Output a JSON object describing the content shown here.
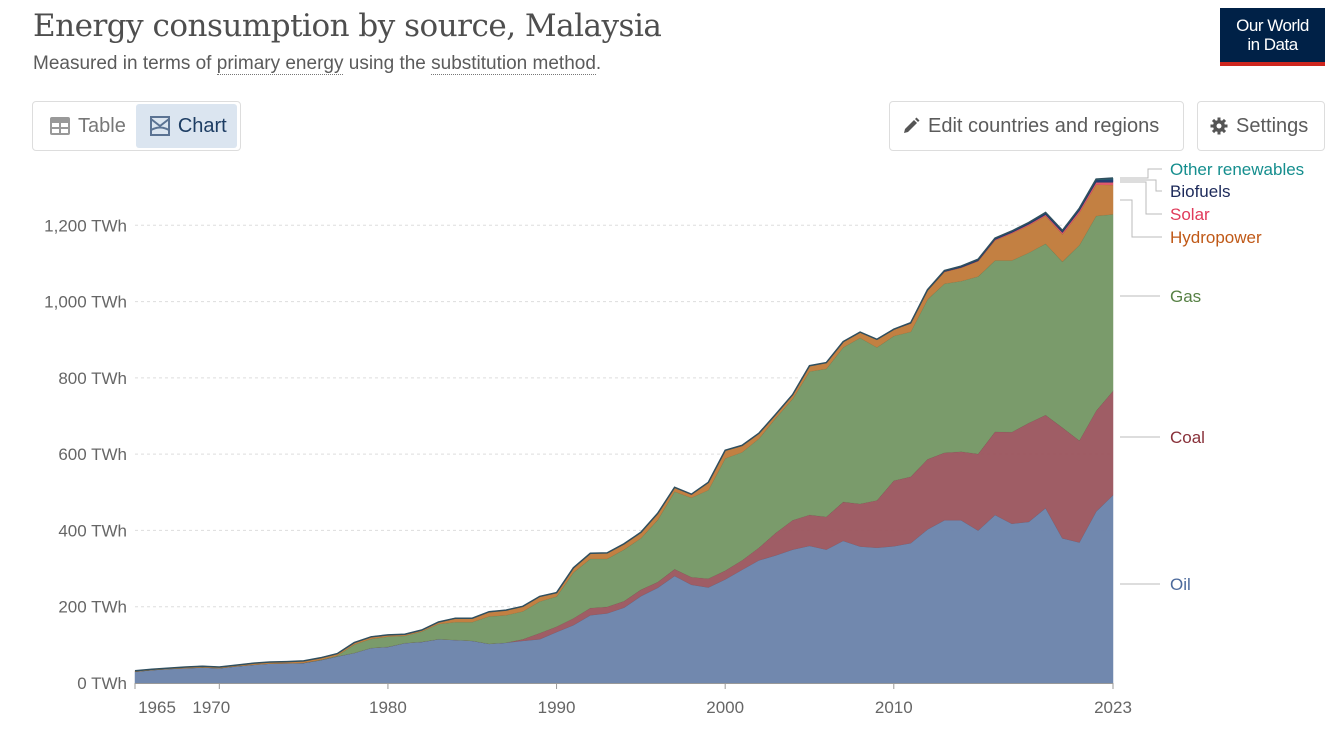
{
  "header": {
    "title": "Energy consumption by source, Malaysia",
    "subtitle_parts": [
      "Measured in terms of ",
      "primary energy",
      " using the ",
      "substitution method",
      "."
    ],
    "logo_line1": "Our World",
    "logo_line2": "in Data"
  },
  "tabs": [
    {
      "label": "Table",
      "icon": "table-icon",
      "active": false
    },
    {
      "label": "Chart",
      "icon": "chart-icon",
      "active": true
    }
  ],
  "toolbar": {
    "edit_label": "Edit countries and regions",
    "edit_icon": "pencil-icon",
    "settings_label": "Settings",
    "settings_icon": "gear-icon"
  },
  "chart_data": {
    "type": "area",
    "stacked": true,
    "ylim": [
      0,
      1400
    ],
    "y_ticks": [
      0,
      200,
      400,
      600,
      800,
      1000,
      1200
    ],
    "y_tick_labels": [
      "0 TWh",
      "200 TWh",
      "400 TWh",
      "600 TWh",
      "800 TWh",
      "1,000 TWh",
      "1,200 TWh"
    ],
    "x_ticks": [
      1965,
      1970,
      1980,
      1990,
      2000,
      2010,
      2023
    ],
    "x_tick_labels": [
      "1965",
      "1970",
      "1980",
      "1990",
      "2000",
      "2010",
      "2023"
    ],
    "grid": "horizontal dashed",
    "legend": "right, inline labels",
    "x": [
      1965,
      1966,
      1967,
      1968,
      1969,
      1970,
      1971,
      1972,
      1973,
      1974,
      1975,
      1976,
      1977,
      1978,
      1979,
      1980,
      1981,
      1982,
      1983,
      1984,
      1985,
      1986,
      1987,
      1988,
      1989,
      1990,
      1991,
      1992,
      1993,
      1994,
      1995,
      1996,
      1997,
      1998,
      1999,
      2000,
      2001,
      2002,
      2003,
      2004,
      2005,
      2006,
      2007,
      2008,
      2009,
      2010,
      2011,
      2012,
      2013,
      2014,
      2015,
      2016,
      2017,
      2018,
      2019,
      2020,
      2021,
      2022,
      2023
    ],
    "series": [
      {
        "name": "Oil",
        "color": "#6f86ad",
        "label_color": "#4c6a9c",
        "values": [
          30,
          34,
          37,
          39,
          41,
          39,
          44,
          48,
          51,
          52,
          53,
          60,
          70,
          79,
          92,
          95,
          105,
          108,
          115,
          113,
          111,
          103,
          106,
          111,
          115,
          134,
          152,
          178,
          183,
          198,
          228,
          250,
          281,
          258,
          251,
          272,
          297,
          322,
          335,
          350,
          360,
          350,
          373,
          358,
          355,
          359,
          367,
          403,
          427,
          427,
          400,
          441,
          418,
          423,
          459,
          380,
          369,
          450,
          493
        ]
      },
      {
        "name": "Coal",
        "color": "#9e5a62",
        "label_color": "#883039",
        "values": [
          0,
          0,
          0,
          0,
          0,
          0,
          0,
          0,
          0,
          0,
          0,
          0,
          0,
          0,
          0,
          0,
          0,
          0,
          0,
          0,
          0,
          0,
          0,
          4,
          16,
          14,
          18,
          19,
          17,
          17,
          17,
          15,
          18,
          20,
          23,
          23,
          25,
          33,
          59,
          77,
          81,
          86,
          102,
          112,
          124,
          172,
          174,
          184,
          177,
          180,
          201,
          218,
          240,
          259,
          244,
          290,
          267,
          264,
          273
        ]
      },
      {
        "name": "Gas",
        "color": "#789a69",
        "label_color": "#578145",
        "values": [
          0,
          0,
          0,
          0,
          0,
          0,
          0,
          0,
          0,
          0,
          0,
          1,
          2,
          22,
          24,
          27,
          19,
          27,
          40,
          47,
          49,
          72,
          72,
          73,
          83,
          79,
          120,
          129,
          126,
          135,
          135,
          163,
          203,
          208,
          232,
          294,
          283,
          286,
          301,
          318,
          376,
          388,
          405,
          435,
          401,
          379,
          380,
          419,
          443,
          447,
          465,
          449,
          450,
          446,
          449,
          435,
          512,
          511,
          463
        ]
      },
      {
        "name": "Hydropower",
        "color": "#c27e3f",
        "label_color": "#c05917",
        "values": [
          2,
          2,
          2,
          3,
          3,
          3,
          3,
          4,
          4,
          4,
          5,
          5,
          5,
          5,
          5,
          4,
          4,
          4,
          5,
          10,
          10,
          12,
          13,
          13,
          13,
          10,
          12,
          14,
          15,
          15,
          15,
          17,
          11,
          9,
          20,
          21,
          18,
          14,
          10,
          11,
          15,
          16,
          15,
          15,
          21,
          17,
          22,
          23,
          31,
          35,
          40,
          53,
          71,
          72,
          73,
          72,
          85,
          82,
          77
        ]
      },
      {
        "name": "Solar",
        "color": "#e0566c",
        "label_color": "#e03a5a",
        "values": [
          0,
          0,
          0,
          0,
          0,
          0,
          0,
          0,
          0,
          0,
          0,
          0,
          0,
          0,
          0,
          0,
          0,
          0,
          0,
          0,
          0,
          0,
          0,
          0,
          0,
          0,
          0,
          0,
          0,
          0,
          0,
          0,
          0,
          0,
          0,
          0,
          0,
          0,
          0,
          0,
          0,
          0,
          0,
          0,
          0,
          0,
          0,
          0,
          0.5,
          0.7,
          1,
          1.5,
          2,
          2.5,
          3,
          4,
          5,
          6,
          7
        ]
      },
      {
        "name": "Biofuels",
        "color": "#1f3a6e",
        "label_color": "#1d2a5a",
        "values": [
          0,
          0,
          0,
          0,
          0,
          0,
          0,
          0,
          0,
          0,
          0,
          0,
          0,
          0,
          0,
          0,
          0,
          0,
          0,
          0,
          0,
          0,
          0,
          0,
          0,
          0,
          0,
          0,
          0,
          0,
          0,
          0,
          0,
          0,
          0,
          0,
          0,
          0,
          0,
          0,
          0,
          0,
          0,
          0,
          0,
          0,
          1,
          1.5,
          2,
          2.5,
          3,
          3,
          3,
          3.5,
          4,
          4,
          4.5,
          6,
          8
        ]
      },
      {
        "name": "Other renewables",
        "color": "#2b7a7a",
        "label_color": "#158e8e",
        "values": [
          0,
          0,
          0,
          0,
          0,
          0,
          0,
          0,
          0,
          0,
          0,
          0,
          0,
          0,
          0,
          0,
          0,
          0,
          0,
          0,
          0,
          0,
          0,
          0,
          0,
          0,
          0,
          0,
          0,
          0,
          0,
          0,
          0,
          0,
          0,
          0,
          0,
          0,
          0,
          0,
          0,
          0,
          0,
          0,
          0,
          0.5,
          0.5,
          0.5,
          0.6,
          0.7,
          1,
          1,
          1,
          1.2,
          1.5,
          1.5,
          2,
          2,
          3
        ]
      }
    ]
  }
}
